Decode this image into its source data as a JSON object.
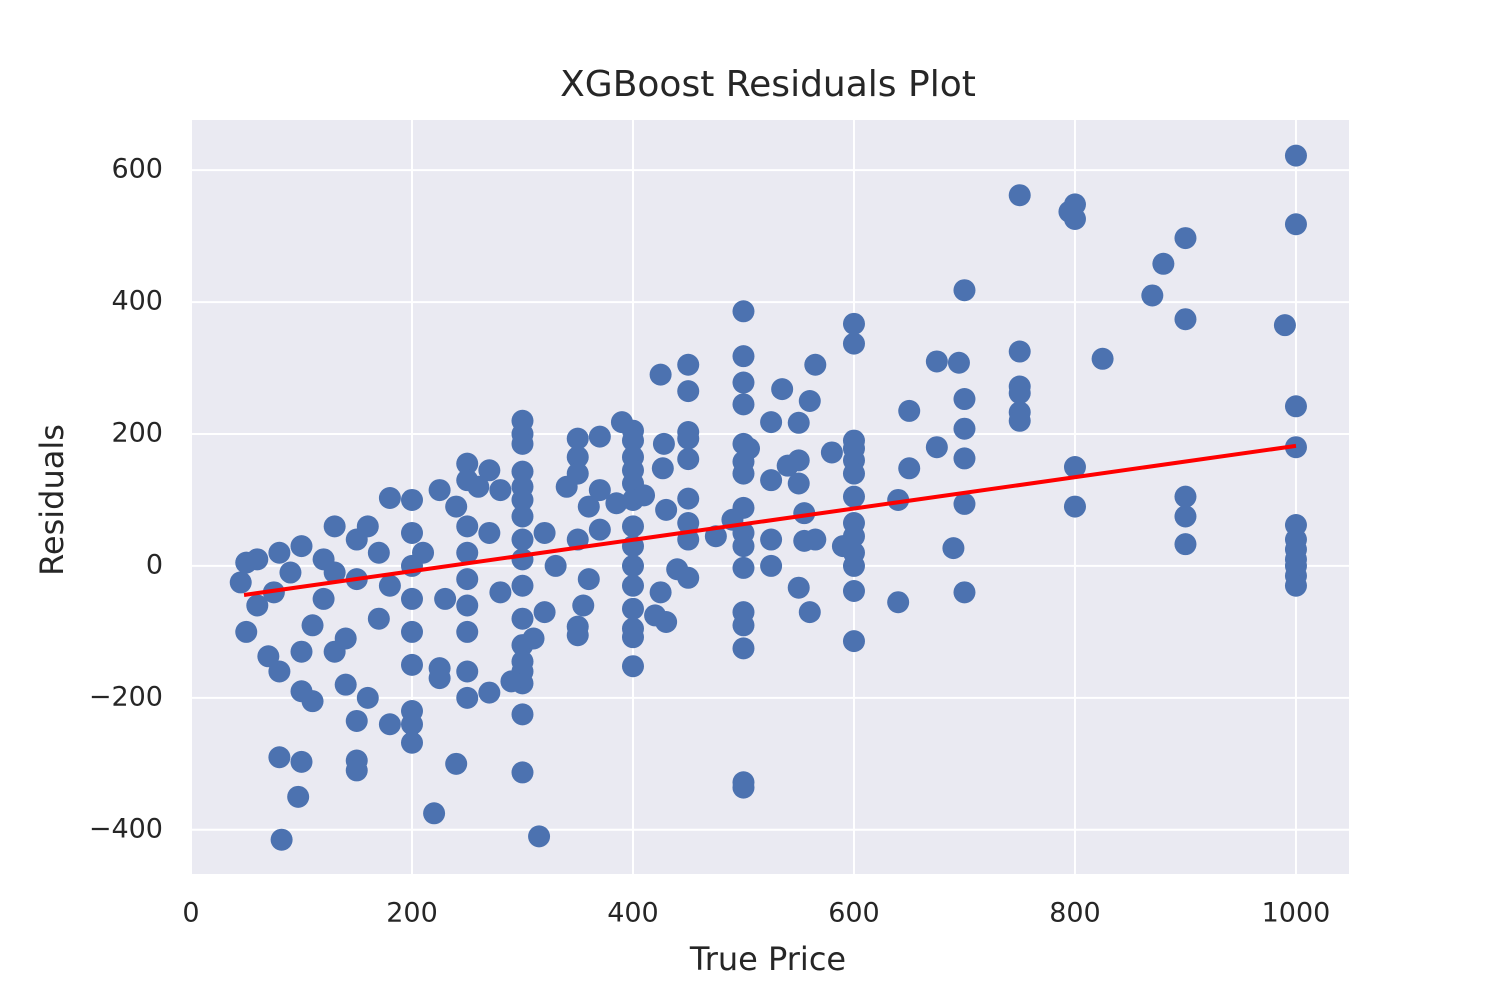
{
  "chart_data": {
    "type": "scatter",
    "title": "XGBoost Residuals Plot",
    "x_label": "True Price",
    "y_label": "Residuals",
    "xlim": [
      0,
      1048
    ],
    "ylim": [
      -467,
      676
    ],
    "xticks": [
      0,
      200,
      400,
      600,
      800,
      1000
    ],
    "yticks": [
      {
        "value": -400,
        "label": "−400"
      },
      {
        "value": -200,
        "label": "−200"
      },
      0,
      200,
      400,
      600
    ],
    "grid": true,
    "background": "#eaeaf2",
    "series": [
      {
        "type": "scatter",
        "color": "#4c72b0",
        "x": [
          1000,
          1000,
          990,
          1000,
          1000,
          1000,
          1000,
          1000,
          1000,
          1000,
          1000,
          1000,
          900,
          880,
          870,
          900,
          900,
          900,
          900,
          825,
          800,
          795,
          800,
          800,
          800,
          750,
          750,
          750,
          750,
          750,
          750,
          700,
          700,
          700,
          700,
          700,
          690,
          700,
          675,
          695,
          675,
          650,
          650,
          640,
          640,
          600,
          600,
          600,
          600,
          600,
          600,
          600,
          600,
          600,
          600,
          600,
          600,
          600,
          590,
          565,
          560,
          535,
          525,
          550,
          550,
          540,
          525,
          550,
          555,
          555,
          565,
          525,
          525,
          550,
          560,
          580,
          500,
          500,
          500,
          500,
          500,
          505,
          500,
          500,
          500,
          500,
          500,
          500,
          500,
          500,
          500,
          500,
          500,
          490,
          475,
          450,
          450,
          450,
          450,
          450,
          450,
          450,
          450,
          450,
          425,
          428,
          427,
          430,
          425,
          430,
          440,
          420,
          400,
          400,
          390,
          400,
          400,
          400,
          400,
          400,
          400,
          400,
          400,
          400,
          400,
          400,
          400,
          410,
          385,
          370,
          350,
          350,
          350,
          370,
          360,
          370,
          350,
          360,
          355,
          350,
          350,
          340,
          300,
          300,
          300,
          300,
          300,
          300,
          300,
          300,
          300,
          300,
          300,
          300,
          300,
          300,
          300,
          300,
          300,
          315,
          320,
          310,
          290,
          270,
          280,
          260,
          250,
          250,
          225,
          240,
          250,
          250,
          250,
          250,
          250,
          250,
          250,
          270,
          240,
          220,
          225,
          225,
          200,
          180,
          200,
          200,
          200,
          200,
          200,
          200,
          200,
          200,
          180,
          160,
          150,
          150,
          150,
          140,
          130,
          110,
          100,
          97,
          100,
          80,
          82,
          80,
          70,
          100,
          150,
          130,
          100,
          80,
          60,
          50,
          45,
          50,
          60,
          120,
          170,
          150,
          120,
          170,
          90,
          110,
          140,
          180,
          160,
          130,
          75,
          210,
          230,
          270,
          280,
          320,
          330
        ],
        "values": [
          622,
          518,
          365,
          242,
          180,
          62,
          40,
          25,
          10,
          0,
          -15,
          -30,
          497,
          458,
          410,
          374,
          105,
          75,
          33,
          314,
          548,
          537,
          526,
          150,
          90,
          562,
          325,
          272,
          262,
          233,
          220,
          418,
          253,
          208,
          163,
          94,
          27,
          -40,
          310,
          308,
          180,
          235,
          148,
          100,
          -55,
          367,
          337,
          190,
          178,
          160,
          140,
          105,
          65,
          45,
          20,
          0,
          -38,
          -114,
          30,
          305,
          250,
          268,
          218,
          217,
          160,
          152,
          130,
          125,
          80,
          38,
          40,
          40,
          0,
          -33,
          -70,
          172,
          386,
          318,
          278,
          245,
          185,
          178,
          158,
          140,
          88,
          50,
          30,
          -3,
          -70,
          -90,
          -125,
          -328,
          -336,
          70,
          45,
          305,
          265,
          203,
          193,
          162,
          102,
          65,
          40,
          -18,
          290,
          185,
          148,
          85,
          -40,
          -85,
          -5,
          -75,
          205,
          190,
          218,
          165,
          145,
          125,
          100,
          60,
          30,
          0,
          -30,
          -65,
          -95,
          -108,
          -152,
          107,
          95,
          196,
          193,
          165,
          140,
          115,
          90,
          55,
          40,
          -20,
          -60,
          -92,
          -105,
          120,
          220,
          200,
          185,
          143,
          120,
          100,
          75,
          40,
          10,
          -30,
          -80,
          -120,
          -145,
          -160,
          -178,
          -225,
          -313,
          -410,
          -70,
          -110,
          -175,
          145,
          115,
          120,
          155,
          130,
          115,
          90,
          60,
          20,
          -20,
          -60,
          -100,
          -160,
          -200,
          -192,
          -300,
          -375,
          -155,
          -170,
          100,
          103,
          50,
          0,
          -50,
          -100,
          -150,
          -220,
          -240,
          -268,
          -240,
          -200,
          -235,
          -295,
          -310,
          -180,
          -130,
          -205,
          -190,
          -350,
          -297,
          -290,
          -415,
          -160,
          -137,
          -130,
          40,
          60,
          30,
          20,
          10,
          5,
          -25,
          -100,
          -60,
          -50,
          -80,
          -20,
          10,
          20,
          -10,
          -90,
          -110,
          -30,
          60,
          -10,
          -40,
          20,
          -50,
          50,
          -40,
          50,
          0
        ]
      },
      {
        "type": "line",
        "color": "#ff0000",
        "x": [
          48,
          1000
        ],
        "values": [
          -44,
          182
        ]
      }
    ]
  }
}
